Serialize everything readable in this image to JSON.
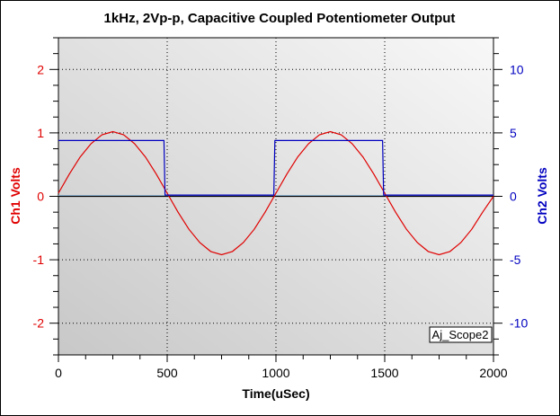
{
  "chart_data": {
    "type": "line",
    "title": "1kHz, 2Vp-p, Capacitive Coupled Potentiometer Output",
    "xlabel": "Time(uSec)",
    "ylabel": "Ch1 Volts",
    "y2label": "Ch2 Volts",
    "xlim": [
      0,
      2000
    ],
    "ylim": [
      -2.5,
      2.5
    ],
    "y2lim": [
      -12.5,
      12.5
    ],
    "xticks": [
      0,
      500,
      1000,
      1500,
      2000
    ],
    "yticks": [
      -2,
      -1,
      0,
      1,
      2
    ],
    "y2ticks": [
      -10,
      -5,
      0,
      5,
      10
    ],
    "grid": true,
    "annotation": "Aj_Scope2",
    "colors": {
      "ch1": "#e00000",
      "ch2": "#0000c0",
      "ylabel": "#e00000",
      "y2label": "#0000c0"
    },
    "series": [
      {
        "axis": "left",
        "x": [
          0,
          50,
          100,
          150,
          200,
          250,
          300,
          350,
          400,
          450,
          500,
          550,
          600,
          650,
          700,
          750,
          800,
          850,
          900,
          950,
          1000,
          1050,
          1100,
          1150,
          1200,
          1250,
          1300,
          1350,
          1400,
          1450,
          1500,
          1550,
          1600,
          1650,
          1700,
          1750,
          1800,
          1850,
          1900,
          1950,
          2000
        ],
        "values": [
          0.05,
          0.35,
          0.62,
          0.83,
          0.97,
          1.02,
          0.97,
          0.83,
          0.62,
          0.35,
          0.05,
          -0.25,
          -0.52,
          -0.73,
          -0.87,
          -0.92,
          -0.87,
          -0.73,
          -0.52,
          -0.25,
          0.05,
          0.35,
          0.62,
          0.83,
          0.97,
          1.02,
          0.97,
          0.83,
          0.62,
          0.35,
          0.05,
          -0.25,
          -0.52,
          -0.73,
          -0.87,
          -0.92,
          -0.87,
          -0.73,
          -0.52,
          -0.25,
          0.0
        ]
      },
      {
        "axis": "right",
        "x": [
          0,
          485,
          490,
          990,
          995,
          1490,
          1495,
          2000
        ],
        "values": [
          4.4,
          4.4,
          0.1,
          0.1,
          4.4,
          4.4,
          0.1,
          0.1
        ]
      }
    ]
  }
}
